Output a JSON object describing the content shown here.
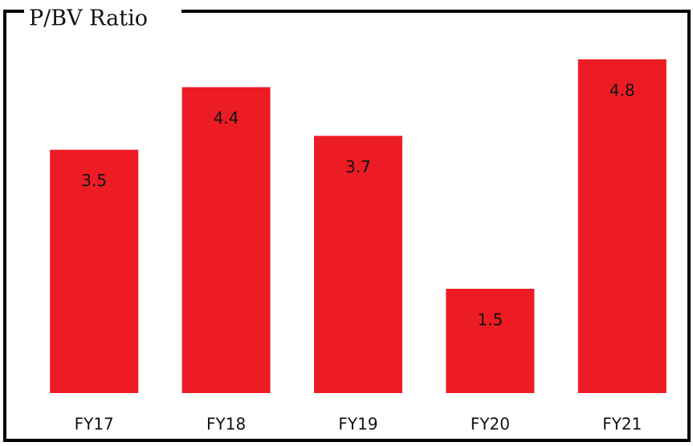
{
  "chart_data": {
    "type": "bar",
    "title": "P/BV Ratio",
    "categories": [
      "FY17",
      "FY18",
      "FY19",
      "FY20",
      "FY21"
    ],
    "values": [
      3.5,
      4.4,
      3.7,
      1.5,
      4.8
    ],
    "color": "#ed1c24"
  }
}
